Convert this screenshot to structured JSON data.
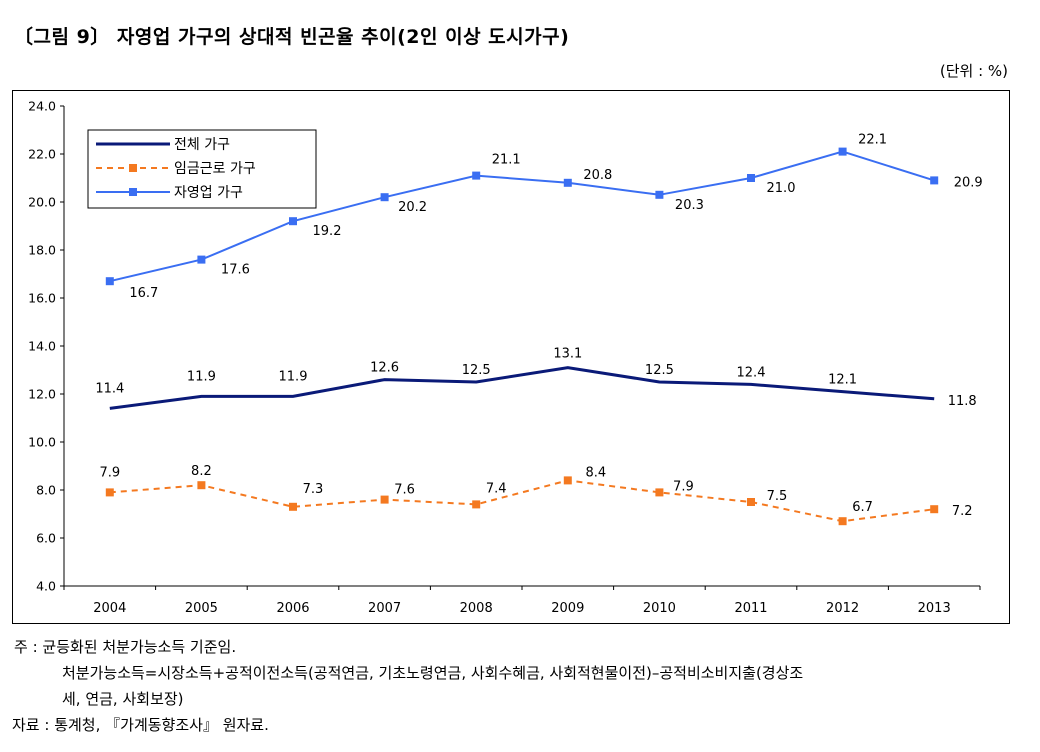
{
  "title": "〔그림 9〕 자영업 가구의 상대적 빈곤율 추이(2인 이상 도시가구)",
  "unit": "(단위 : %)",
  "chart_data": {
    "type": "line",
    "categories": [
      "2004",
      "2005",
      "2006",
      "2007",
      "2008",
      "2009",
      "2010",
      "2011",
      "2012",
      "2013"
    ],
    "ylim": [
      4.0,
      24.0
    ],
    "yticks": [
      "4.0",
      "6.0",
      "8.0",
      "10.0",
      "12.0",
      "14.0",
      "16.0",
      "18.0",
      "20.0",
      "22.0",
      "24.0"
    ],
    "grid": false,
    "legend_position": "top-left",
    "series": [
      {
        "name": "전체 가구",
        "values": [
          11.4,
          11.9,
          11.9,
          12.6,
          12.5,
          13.1,
          12.5,
          12.4,
          12.1,
          11.8
        ],
        "labels": [
          "11.4",
          "11.9",
          "11.9",
          "12.6",
          "12.5",
          "13.1",
          "12.5",
          "12.4",
          "12.1",
          "11.8"
        ],
        "color": "#0a1a78",
        "style": "solid-thick",
        "marker": "none"
      },
      {
        "name": "임금근로 가구",
        "values": [
          7.9,
          8.2,
          7.3,
          7.6,
          7.4,
          8.4,
          7.9,
          7.5,
          6.7,
          7.2
        ],
        "labels": [
          "7.9",
          "8.2",
          "7.3",
          "7.6",
          "7.4",
          "8.4",
          "7.9",
          "7.5",
          "6.7",
          "7.2"
        ],
        "color": "#f47920",
        "style": "dashed",
        "marker": "square"
      },
      {
        "name": "자영업 가구",
        "values": [
          16.7,
          17.6,
          19.2,
          20.2,
          21.1,
          20.8,
          20.3,
          21.0,
          22.1,
          20.9
        ],
        "labels": [
          "16.7",
          "17.6",
          "19.2",
          "20.2",
          "21.1",
          "20.8",
          "20.3",
          "21.0",
          "22.1",
          "20.9"
        ],
        "color": "#3a6ef2",
        "style": "solid",
        "marker": "square"
      }
    ]
  },
  "notes": {
    "note_key": "주 : ",
    "note_line1": "균등화된 처분가능소득 기준임.",
    "note_line2": "처분가능소득=시장소득+공적이전소득(공적연금, 기초노령연금, 사회수혜금, 사회적현물이전)–공적비소비지출(경상조",
    "note_line3": "세, 연금, 사회보장)",
    "source_key": "자료 : ",
    "source_text": "통계청, 『가계동향조사』 원자료."
  }
}
